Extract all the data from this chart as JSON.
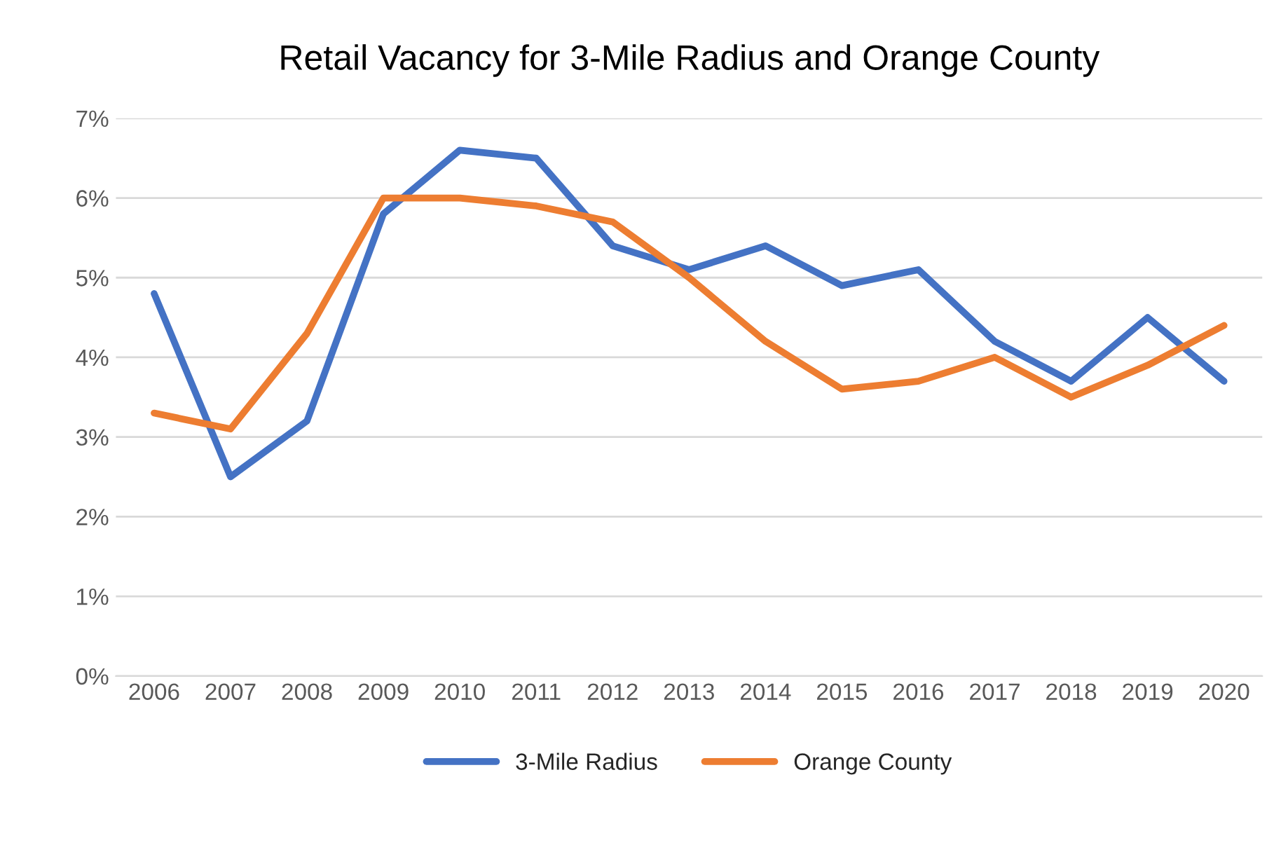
{
  "chart_data": {
    "type": "line",
    "title": "Retail Vacancy for 3-Mile Radius and Orange County",
    "categories": [
      "2006",
      "2007",
      "2008",
      "2009",
      "2010",
      "2011",
      "2012",
      "2013",
      "2014",
      "2015",
      "2016",
      "2017",
      "2018",
      "2019",
      "2020"
    ],
    "series": [
      {
        "name": "3-Mile Radius",
        "color": "#4472c4",
        "values": [
          4.8,
          2.5,
          3.2,
          5.8,
          6.6,
          6.5,
          5.4,
          5.1,
          5.4,
          4.9,
          5.1,
          4.2,
          3.7,
          4.5,
          3.7
        ]
      },
      {
        "name": "Orange County",
        "color": "#ed7d31",
        "values": [
          3.3,
          3.1,
          4.3,
          6.0,
          6.0,
          5.9,
          5.7,
          5.0,
          4.2,
          3.6,
          3.7,
          4.0,
          3.5,
          3.9,
          4.4
        ]
      }
    ],
    "ylim": [
      0,
      7
    ],
    "yticks": [
      {
        "value": 0,
        "label": "0%"
      },
      {
        "value": 1,
        "label": "1%"
      },
      {
        "value": 2,
        "label": "2%"
      },
      {
        "value": 3,
        "label": "3%"
      },
      {
        "value": 4,
        "label": "4%"
      },
      {
        "value": 5,
        "label": "5%"
      },
      {
        "value": 6,
        "label": "6%"
      },
      {
        "value": 7,
        "label": "7%"
      }
    ],
    "grid": "y",
    "legend": "bottom",
    "marker": "none",
    "line_style": "solid"
  }
}
